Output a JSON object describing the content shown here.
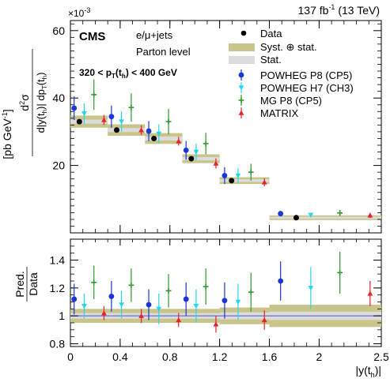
{
  "chart_data": [
    {
      "type": "scatter",
      "panel": "main",
      "header": {
        "lumi": "137 fb",
        "lumi_exp": "-1",
        "energy": " (13 TeV)"
      },
      "cms_label": "CMS",
      "channel": "e/μ+jets",
      "level": "Parton level",
      "selection": {
        "lo": "320 < p",
        "sub1": "T",
        "mid": "(t",
        "sub2": "h",
        "hi": ") < 400 GeV"
      },
      "y_multiplier": {
        "base": "×10",
        "exp": "-3"
      },
      "ylabel": {
        "d": "d",
        "sq": "2",
        "sigma": "σ",
        "den1": "d|y(t",
        "den_h": "h",
        "den2": ")| dp",
        "den_T": "T",
        "den3": "(t",
        "den_h2": "h",
        "den4": ")",
        "unit_pre": "[pb GeV",
        "unit_exp": "-1",
        "unit_post": "]"
      },
      "ylim": [
        0,
        0.063
      ],
      "yticks": [
        {
          "v": 0.02,
          "label": "20"
        },
        {
          "v": 0.04,
          "label": "40"
        },
        {
          "v": 0.06,
          "label": "60"
        }
      ],
      "bin_edges": [
        0,
        0.3,
        0.6,
        0.9,
        1.2,
        1.6,
        2.5
      ],
      "data": {
        "name": "Data",
        "values": [
          0.033,
          0.0305,
          0.028,
          0.022,
          0.0155,
          0.0045
        ],
        "syst": [
          0.0018,
          0.0017,
          0.0016,
          0.0013,
          0.001,
          0.0007
        ],
        "stat": [
          0.0006,
          0.0006,
          0.0006,
          0.0005,
          0.0004,
          0.0003
        ]
      },
      "series": [
        {
          "name": "POWHEG P8 (CP5)",
          "color": "#1b35d6",
          "marker": "circle",
          "values": [
            0.037,
            0.0345,
            0.0302,
            0.0245,
            0.017,
            0.0057
          ],
          "errors": [
            0.0035,
            0.0033,
            0.003,
            0.0028,
            0.0025,
            0.0008
          ]
        },
        {
          "name": "POWHEG H7 (CH3)",
          "color": "#22d8ee",
          "marker": "triangle-down",
          "values": [
            0.0354,
            0.033,
            0.0294,
            0.024,
            0.017,
            0.0053
          ],
          "errors": [
            0.003,
            0.003,
            0.0028,
            0.0025,
            0.0022,
            0.0007
          ]
        },
        {
          "name": "MG P8 (CP5)",
          "color": "#2c9a2c",
          "marker": "cross",
          "values": [
            0.041,
            0.0372,
            0.033,
            0.0265,
            0.018,
            0.0059
          ],
          "errors": [
            0.0045,
            0.0042,
            0.0038,
            0.0032,
            0.0025,
            0.0009
          ]
        },
        {
          "name": "MATRIX",
          "color": "#e8212a",
          "marker": "triangle-up",
          "values": [
            0.0335,
            0.0305,
            0.0272,
            0.0206,
            0.015,
            0.0052
          ],
          "errors": [
            0.0015,
            0.0014,
            0.0013,
            0.0015,
            0.0012,
            0.0008
          ]
        }
      ],
      "legend": {
        "placement": "top-right",
        "data": "Data",
        "syst": "Syst. ⊕ stat.",
        "stat": "Stat.",
        "syst_color": "#c9c48a",
        "stat_color": "#dcdcdc"
      }
    },
    {
      "type": "scatter",
      "panel": "ratio",
      "ylabel": {
        "top": "Pred.",
        "bottom": "Data"
      },
      "xlabel": {
        "pre": "|y(t",
        "sub": "h",
        "post": ")|"
      },
      "xlim": [
        0,
        2.5
      ],
      "ylim": [
        0.78,
        1.55
      ],
      "xticks": [
        {
          "v": 0,
          "label": "0"
        },
        {
          "v": 0.4,
          "label": "0.4"
        },
        {
          "v": 0.8,
          "label": "0.8"
        },
        {
          "v": 1.2,
          "label": "1.2"
        },
        {
          "v": 1.6,
          "label": "1.6"
        },
        {
          "v": 2.0,
          "label": "2"
        },
        {
          "v": 2.5,
          "label": "2.5"
        }
      ],
      "yticks": [
        {
          "v": 0.8,
          "label": "0.8"
        },
        {
          "v": 1.0,
          "label": "1"
        },
        {
          "v": 1.2,
          "label": "1.2"
        },
        {
          "v": 1.4,
          "label": "1.4"
        }
      ],
      "bin_edges": [
        0,
        0.3,
        0.6,
        0.9,
        1.2,
        1.6,
        2.5
      ],
      "band_syst": [
        0.05,
        0.05,
        0.05,
        0.05,
        0.06,
        0.08
      ],
      "band_stat": [
        0.02,
        0.02,
        0.02,
        0.02,
        0.025,
        0.03
      ],
      "series": [
        {
          "name": "POWHEG P8 (CP5)",
          "color": "#1b35d6",
          "marker": "circle",
          "values": [
            1.12,
            1.14,
            1.08,
            1.12,
            1.11,
            1.25
          ],
          "errors": [
            0.11,
            0.11,
            0.11,
            0.12,
            0.13,
            0.14
          ]
        },
        {
          "name": "POWHEG H7 (CH3)",
          "color": "#22d8ee",
          "marker": "triangle-down",
          "values": [
            1.07,
            1.08,
            1.05,
            1.07,
            1.1,
            1.2
          ],
          "errors": [
            0.09,
            0.1,
            0.11,
            0.12,
            0.13,
            0.15
          ]
        },
        {
          "name": "MG P8 (CP5)",
          "color": "#2c9a2c",
          "marker": "cross",
          "values": [
            1.24,
            1.22,
            1.18,
            1.21,
            1.17,
            1.31
          ],
          "errors": [
            0.12,
            0.12,
            0.12,
            0.13,
            0.14,
            0.15
          ]
        },
        {
          "name": "MATRIX",
          "color": "#e8212a",
          "marker": "triangle-up",
          "values": [
            1.02,
            1.0,
            0.97,
            0.94,
            0.97,
            1.16
          ],
          "errors": [
            0.05,
            0.05,
            0.05,
            0.06,
            0.07,
            0.09
          ]
        }
      ]
    }
  ]
}
